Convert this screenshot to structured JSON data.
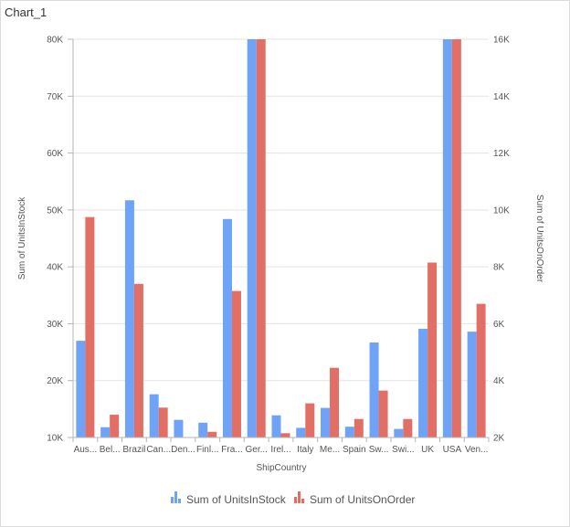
{
  "window": {
    "title": "Chart_1"
  },
  "chart_data": {
    "type": "bar",
    "title": "Chart_1",
    "xlabel": "ShipCountry",
    "ylabel": "Sum of UnitsInStock",
    "y2label": "Sum of UnitsOnOrder",
    "ylim": [
      10000,
      80000
    ],
    "y2lim": [
      2000,
      16000
    ],
    "yticks": [
      10000,
      20000,
      30000,
      40000,
      50000,
      60000,
      70000,
      80000
    ],
    "y2ticks": [
      2000,
      4000,
      6000,
      8000,
      10000,
      12000,
      14000,
      16000
    ],
    "ytick_labels": [
      "10K",
      "20K",
      "30K",
      "40K",
      "50K",
      "60K",
      "70K",
      "80K"
    ],
    "y2tick_labels": [
      "2K",
      "4K",
      "6K",
      "8K",
      "10K",
      "12K",
      "14K",
      "16K"
    ],
    "categories": [
      "Aus...",
      "Bel...",
      "Brazil",
      "Can...",
      "Den...",
      "Finl...",
      "Fra...",
      "Ger...",
      "Irel...",
      "Italy",
      "Me...",
      "Spain",
      "Sw...",
      "Swi...",
      "UK",
      "USA",
      "Ven..."
    ],
    "series": [
      {
        "name": "Sum of UnitsInStock",
        "axis": "left",
        "color": "#6fa3f7",
        "values": [
          27000,
          11800,
          51700,
          17600,
          13100,
          12600,
          48400,
          80000,
          13900,
          11700,
          15200,
          11900,
          26700,
          11500,
          29100,
          80000,
          28600
        ]
      },
      {
        "name": "Sum of UnitsOnOrder",
        "axis": "right",
        "color": "#e26f66",
        "values": [
          9750,
          2800,
          7400,
          3050,
          1800,
          2200,
          7150,
          16000,
          2150,
          3200,
          4450,
          2650,
          3650,
          2650,
          8150,
          16000,
          6700
        ]
      }
    ],
    "legend": "bottom-center",
    "grid": true
  }
}
